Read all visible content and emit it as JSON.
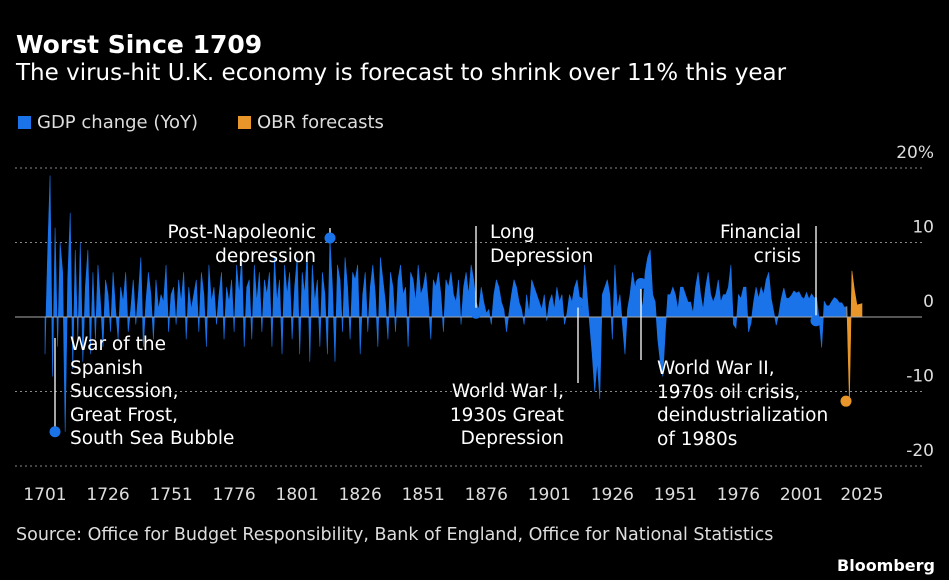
{
  "header": {
    "title": "Worst Since 1709",
    "subtitle": "The virus-hit U.K. economy is forecast to shrink over 11% this year"
  },
  "legend": [
    {
      "label": "GDP change (YoY)",
      "color": "#1a73e8"
    },
    {
      "label": "OBR forecasts",
      "color": "#e8962a"
    }
  ],
  "footer": {
    "source": "Source: Office for Budget Responsibility, Bank of England, Office for National Statistics",
    "brand": "Bloomberg"
  },
  "chart_data": {
    "type": "area",
    "title": "Worst Since 1709",
    "xlim": [
      1701,
      2025
    ],
    "ylim": [
      -20,
      20
    ],
    "x_ticks": [
      "1701",
      "1726",
      "1751",
      "1776",
      "1801",
      "1826",
      "1851",
      "1876",
      "1901",
      "1926",
      "1951",
      "1976",
      "2001",
      "2025"
    ],
    "y_ticks": [
      {
        "value": 20,
        "label": "20%"
      },
      {
        "value": 10,
        "label": "10"
      },
      {
        "value": 0,
        "label": "0"
      },
      {
        "value": -10,
        "label": "-10"
      },
      {
        "value": -20,
        "label": "-20"
      }
    ],
    "grid": true,
    "legend_placement": "top-left",
    "series": [
      {
        "name": "GDP change (YoY)",
        "color": "#1a73e8",
        "start_year": 1701,
        "values": [
          -5,
          8,
          19,
          -8,
          12,
          -4,
          10,
          6,
          -15.4,
          5,
          14,
          -7,
          9,
          -3,
          10,
          -6,
          4,
          9,
          -5,
          6,
          -3,
          7,
          2,
          -4,
          5,
          3,
          -2,
          6,
          1,
          -3,
          4,
          2,
          6,
          -2,
          1,
          5,
          -1,
          3,
          8,
          -4,
          2,
          6,
          3,
          -3,
          5,
          1,
          3,
          2,
          7,
          -2,
          3,
          4,
          -1,
          5,
          2,
          6,
          -3,
          4,
          1,
          3,
          5,
          -2,
          6,
          3,
          -4,
          7,
          2,
          4,
          -1,
          3,
          6,
          -3,
          4,
          2,
          5,
          -2,
          7,
          3,
          8,
          -4,
          4,
          5,
          -3,
          7,
          2,
          6,
          -2,
          5,
          3,
          6,
          -4,
          8,
          2,
          5,
          -5,
          7,
          3,
          6,
          -3,
          4,
          8,
          -5,
          6,
          3,
          9,
          -6,
          7,
          2,
          5,
          -4,
          6,
          3,
          -5,
          10.6,
          4,
          -6,
          7,
          5,
          -2,
          8,
          4,
          -3,
          6,
          5,
          7,
          -5,
          3,
          6,
          -2,
          4,
          7,
          3,
          -4,
          8,
          5,
          2,
          -3,
          6,
          4,
          -2,
          5,
          7,
          3,
          4,
          -4,
          6,
          5,
          2,
          7,
          3,
          4,
          6,
          2,
          -3,
          5,
          4,
          6,
          3,
          -2,
          5,
          4,
          6,
          3,
          2,
          5,
          -1,
          4,
          6,
          3,
          7,
          5,
          2,
          1,
          4,
          2,
          0.5,
          1,
          -1,
          3,
          5,
          4,
          2,
          1,
          -2,
          0.5,
          3,
          5,
          4,
          2,
          1,
          -1,
          3,
          0.5,
          5,
          4,
          3,
          2,
          1,
          3,
          -0.5,
          2,
          3,
          1,
          4,
          2,
          3,
          -1,
          0.5,
          3,
          2,
          4,
          5,
          2.5,
          1,
          7,
          3,
          -1,
          -5,
          -10,
          -6,
          -11,
          3,
          4,
          5,
          3,
          -3,
          7,
          1,
          3,
          -1,
          -5,
          1,
          3,
          6,
          4,
          5,
          4,
          1,
          6,
          8,
          9,
          3,
          2,
          -3,
          -6,
          -8,
          -2,
          3,
          3,
          4,
          3,
          1,
          4,
          4,
          3,
          2,
          2,
          0.5,
          4,
          6,
          3,
          1,
          4,
          6,
          3,
          2,
          3,
          5,
          2,
          3,
          3,
          4,
          7,
          -1,
          -1.5,
          3,
          2.5,
          4,
          4,
          -2,
          -0.8,
          2,
          4,
          2.5,
          4,
          3,
          5,
          6,
          2.5,
          0.7,
          -1.1,
          0.4,
          2.5,
          3.9,
          2.5,
          2.5,
          2.9,
          3.5,
          3.2,
          3.4,
          2.7,
          2.4,
          3.3,
          2.4,
          3.1,
          2.6,
          2.6,
          -0.3,
          -4.1,
          2.1,
          1.5,
          1.5,
          2.1,
          2.6,
          2.4,
          1.9,
          1.9,
          1.3,
          1.4
        ]
      },
      {
        "name": "OBR forecasts",
        "color": "#e8962a",
        "start_year": 2020,
        "values": [
          -11.3,
          6.2,
          3.6,
          1.6,
          1.7,
          1.8
        ]
      }
    ],
    "annotations": [
      {
        "text": [
          "War of the",
          "Spanish",
          "Succession,",
          "Great Frost,",
          "South Sea Bubble"
        ],
        "year": 1709,
        "value": -15.4
      },
      {
        "text": [
          "Post-Napoleonic",
          "depression"
        ],
        "year": 1814,
        "value": 10.6
      },
      {
        "text": [
          "Long",
          "Depression"
        ],
        "year": 1873,
        "value": 0.5
      },
      {
        "text": [
          "World War I,",
          "1930s Great",
          "Depression"
        ],
        "year": 1914,
        "value": 2
      },
      {
        "text": [
          "World War II,",
          "1970s oil crisis,",
          "deindustrialization",
          "of 1980s"
        ],
        "year": 1939,
        "value": 4.5
      },
      {
        "text": [
          "Financial",
          "crisis"
        ],
        "year": 2009,
        "value": -0.5
      },
      {
        "text": [],
        "year": 2020,
        "value": -11.3
      }
    ]
  }
}
